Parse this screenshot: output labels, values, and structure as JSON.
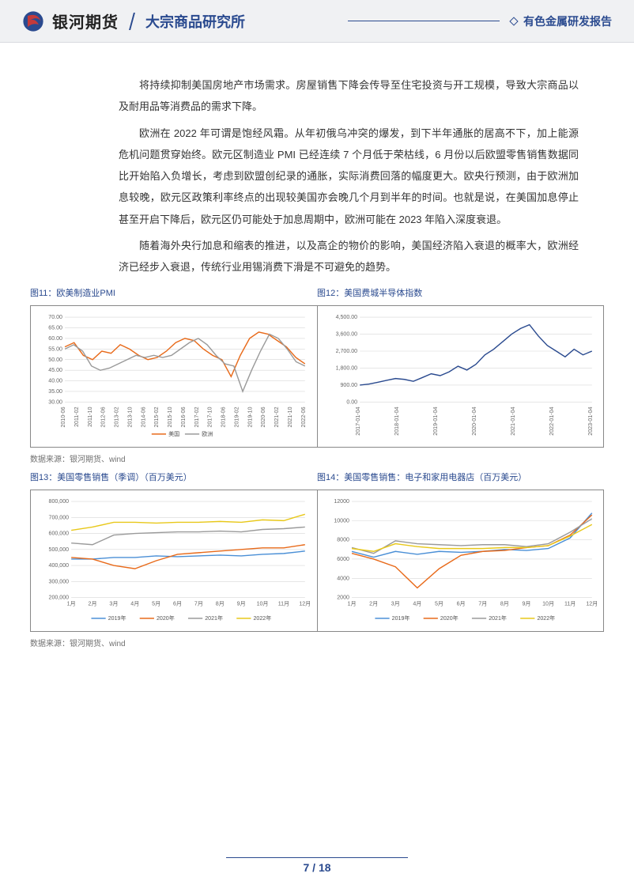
{
  "header": {
    "brand": "银河期货",
    "subtitle": "大宗商品研究所",
    "right_label": "有色金属研发报告"
  },
  "paragraphs": {
    "p1": "将持续抑制美国房地产市场需求。房屋销售下降会传导至住宅投资与开工规模，导致大宗商品以及耐用品等消费品的需求下降。",
    "p2": "欧洲在 2022 年可谓是饱经风霜。从年初俄乌冲突的爆发，到下半年通胀的居高不下，加上能源危机问题贯穿始终。欧元区制造业 PMI 已经连续 7 个月低于荣枯线，6 月份以后欧盟零售销售数据同比开始陷入负增长，考虑到欧盟创纪录的通胀，实际消费回落的幅度更大。欧央行预测，由于欧洲加息较晚，欧元区政策利率终点的出现较美国亦会晚几个月到半年的时间。也就是说，在美国加息停止甚至开启下降后，欧元区仍可能处于加息周期中，欧洲可能在 2023 年陷入深度衰退。",
    "p3": "随着海外央行加息和缩表的推进，以及高企的物价的影响，美国经济陷入衰退的概率大，欧洲经济已经步入衰退，传统行业用锡消费下滑是不可避免的趋势。"
  },
  "chart_titles": {
    "c11": "图11：欧美制造业PMI",
    "c12": "图12：美国费城半导体指数",
    "c13": "图13：美国零售销售（季调）（百万美元）",
    "c14": "图14：美国零售销售：电子和家用电器店（百万美元）"
  },
  "source_label": "数据来源：银河期货、wind",
  "footer": {
    "page": "7",
    "sep": " / ",
    "total": "18"
  },
  "colors": {
    "accent": "#2a4a8f",
    "grid": "#d7d7d7",
    "axis_text": "#666666",
    "us": "#e86a1a",
    "eu": "#9a9a9a",
    "y2019": "#4a8fd6",
    "y2020": "#e86a1a",
    "y2021": "#9a9a9a",
    "y2022": "#e8c81a"
  },
  "chart11": {
    "type": "line",
    "ylim": [
      30,
      70
    ],
    "ytick_step": 5,
    "x_labels": [
      "2010-06",
      "2011-02",
      "2011-10",
      "2012-06",
      "2013-02",
      "2013-10",
      "2014-06",
      "2015-02",
      "2015-10",
      "2016-06",
      "2017-02",
      "2017-10",
      "2018-06",
      "2019-02",
      "2019-10",
      "2020-06",
      "2021-02",
      "2021-10",
      "2022-06"
    ],
    "legend": [
      "美国",
      "欧洲"
    ],
    "series": {
      "us": [
        56,
        58,
        52,
        50,
        54,
        53,
        57,
        55,
        52,
        50,
        51,
        54,
        58,
        60,
        59,
        55,
        52,
        50,
        42,
        52,
        60,
        63,
        62,
        59,
        56,
        51,
        48
      ],
      "eu": [
        55,
        57,
        54,
        47,
        45,
        46,
        48,
        50,
        52,
        51,
        52,
        51,
        52,
        55,
        58,
        60,
        57,
        52,
        48,
        47,
        35,
        45,
        54,
        62,
        60,
        55,
        49,
        47
      ]
    },
    "label_fontsize": 7
  },
  "chart12": {
    "type": "line",
    "ylim": [
      0,
      4500
    ],
    "ytick_step": 900,
    "x_labels": [
      "2017-01-04",
      "2018-01-04",
      "2019-01-04",
      "2020-01-04",
      "2021-01-04",
      "2022-01-04",
      "2023-01-04"
    ],
    "series": {
      "sox": [
        900,
        950,
        1050,
        1150,
        1250,
        1200,
        1100,
        1300,
        1500,
        1400,
        1600,
        1900,
        1700,
        2000,
        2500,
        2800,
        3200,
        3600,
        3900,
        4100,
        3500,
        3000,
        2700,
        2400,
        2800,
        2500,
        2700
      ]
    },
    "color": "#2a4a8f",
    "label_fontsize": 7
  },
  "chart13": {
    "type": "line",
    "ylim": [
      200000,
      800000
    ],
    "ytick_step": 100000,
    "x_labels": [
      "1月",
      "2月",
      "3月",
      "4月",
      "5月",
      "6月",
      "7月",
      "8月",
      "9月",
      "10月",
      "11月",
      "12月"
    ],
    "legend": [
      "2019年",
      "2020年",
      "2021年",
      "2022年"
    ],
    "series": {
      "y2019": [
        440000,
        440000,
        450000,
        450000,
        460000,
        455000,
        460000,
        465000,
        460000,
        470000,
        475000,
        490000
      ],
      "y2020": [
        450000,
        440000,
        400000,
        380000,
        430000,
        470000,
        480000,
        490000,
        500000,
        510000,
        510000,
        530000
      ],
      "y2021": [
        540000,
        530000,
        590000,
        600000,
        605000,
        610000,
        610000,
        615000,
        610000,
        625000,
        630000,
        640000
      ],
      "y2022": [
        620000,
        640000,
        670000,
        670000,
        665000,
        670000,
        670000,
        675000,
        670000,
        685000,
        680000,
        720000
      ]
    },
    "label_fontsize": 7
  },
  "chart14": {
    "type": "line",
    "ylim": [
      2000,
      12000
    ],
    "ytick_step": 2000,
    "x_labels": [
      "1月",
      "2月",
      "3月",
      "4月",
      "5月",
      "6月",
      "7月",
      "8月",
      "9月",
      "10月",
      "11月",
      "12月"
    ],
    "legend": [
      "2019年",
      "2020年",
      "2021年",
      "2022年"
    ],
    "series": {
      "y2019": [
        6800,
        6200,
        6800,
        6500,
        6800,
        6700,
        6800,
        7000,
        6900,
        7100,
        8200,
        10800
      ],
      "y2020": [
        6600,
        6000,
        5200,
        3000,
        5000,
        6400,
        6800,
        6900,
        7200,
        7400,
        8500,
        10600
      ],
      "y2021": [
        7200,
        6600,
        7900,
        7600,
        7500,
        7400,
        7500,
        7500,
        7300,
        7600,
        8800,
        10200
      ],
      "y2022": [
        7100,
        6800,
        7600,
        7300,
        7100,
        7100,
        7100,
        7200,
        7200,
        7400,
        8400,
        9600
      ]
    },
    "label_fontsize": 7
  }
}
